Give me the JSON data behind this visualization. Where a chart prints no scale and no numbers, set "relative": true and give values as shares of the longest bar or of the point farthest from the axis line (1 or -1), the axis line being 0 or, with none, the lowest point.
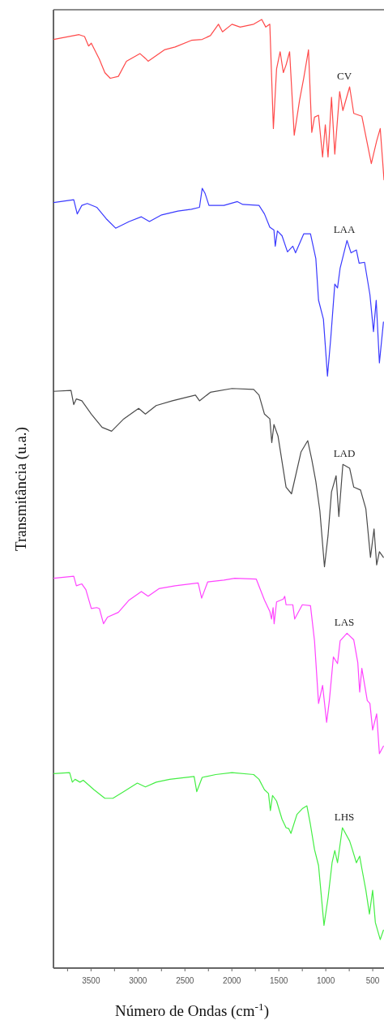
{
  "chart_data": {
    "type": "line",
    "relative": true,
    "xlabel": "Número de Ondas (cm$^{-1}$)",
    "ylabel": "Transmitância (u.a.)",
    "xlim": [
      3900,
      380
    ],
    "xticks": [
      {
        "value": 3750,
        "label": null
      },
      3500,
      {
        "value": 3250,
        "label": null
      },
      3000,
      {
        "value": 2750,
        "label": null
      },
      2500,
      {
        "value": 2250,
        "label": null
      },
      2000,
      {
        "value": 1750,
        "label": null
      },
      1500,
      {
        "value": 1250,
        "label": null
      },
      1000,
      {
        "value": 750,
        "label": null
      },
      500
    ],
    "series": [
      {
        "name": "CV",
        "color": "#ff4a4a",
        "x": [
          3900,
          3627,
          3569,
          3526,
          3497,
          3411,
          3353,
          3295,
          3209,
          3123,
          2978,
          2921,
          2892,
          2719,
          2604,
          2431,
          2316,
          2229,
          2143,
          2100,
          1999,
          1912,
          1768,
          1682,
          1639,
          1596,
          1558,
          1524,
          1486,
          1452,
          1423,
          1385,
          1336,
          1279,
          1235,
          1184,
          1149,
          1120,
          1077,
          1034,
          1005,
          976,
          939,
          904,
          852,
          818,
          746,
          702,
          616,
          515,
          458,
          420,
          380
        ],
        "values": [
          0.979,
          0.984,
          0.982,
          0.972,
          0.975,
          0.958,
          0.944,
          0.938,
          0.94,
          0.956,
          0.964,
          0.959,
          0.956,
          0.968,
          0.971,
          0.978,
          0.979,
          0.983,
          0.995,
          0.987,
          0.995,
          0.992,
          0.995,
          1.0,
          0.992,
          0.995,
          0.885,
          0.948,
          0.966,
          0.944,
          0.952,
          0.966,
          0.878,
          0.915,
          0.938,
          0.968,
          0.881,
          0.897,
          0.899,
          0.855,
          0.889,
          0.855,
          0.918,
          0.858,
          0.924,
          0.904,
          0.929,
          0.901,
          0.898,
          0.848,
          0.872,
          0.885,
          0.831
        ]
      },
      {
        "name": "LAA",
        "color": "#3a3aff",
        "x": [
          3900,
          3684,
          3647,
          3598,
          3540,
          3439,
          3339,
          3238,
          3094,
          2964,
          2878,
          2748,
          2575,
          2431,
          2345,
          2316,
          2287,
          2244,
          2085,
          1941,
          1884,
          1711,
          1653,
          1596,
          1552,
          1538,
          1515,
          1466,
          1408,
          1351,
          1322,
          1235,
          1163,
          1106,
          1077,
          1025,
          982,
          947,
          904,
          875,
          847,
          774,
          731,
          674,
          645,
          587,
          530,
          492,
          463,
          429,
          386
        ],
        "values": [
          0.807,
          0.81,
          0.795,
          0.804,
          0.806,
          0.802,
          0.79,
          0.78,
          0.787,
          0.792,
          0.787,
          0.794,
          0.798,
          0.8,
          0.802,
          0.822,
          0.817,
          0.804,
          0.804,
          0.808,
          0.805,
          0.804,
          0.795,
          0.781,
          0.778,
          0.761,
          0.777,
          0.772,
          0.755,
          0.761,
          0.754,
          0.774,
          0.774,
          0.748,
          0.704,
          0.684,
          0.624,
          0.664,
          0.721,
          0.717,
          0.738,
          0.767,
          0.754,
          0.757,
          0.743,
          0.744,
          0.71,
          0.671,
          0.704,
          0.638,
          0.681
        ]
      },
      {
        "name": "LAD",
        "color": "#4a4a4a",
        "x": [
          3900,
          3713,
          3684,
          3656,
          3598,
          3497,
          3382,
          3281,
          3151,
          2993,
          2921,
          2806,
          2633,
          2388,
          2345,
          2229,
          1999,
          1768,
          1711,
          1653,
          1596,
          1575,
          1552,
          1509,
          1423,
          1365,
          1264,
          1192,
          1149,
          1106,
          1063,
          1014,
          976,
          939,
          890,
          861,
          818,
          746,
          702,
          630,
          573,
          524,
          486,
          458,
          429,
          386
        ],
        "values": [
          0.608,
          0.609,
          0.594,
          0.6,
          0.598,
          0.584,
          0.57,
          0.566,
          0.579,
          0.59,
          0.584,
          0.593,
          0.598,
          0.604,
          0.598,
          0.607,
          0.611,
          0.61,
          0.604,
          0.584,
          0.579,
          0.554,
          0.573,
          0.561,
          0.507,
          0.5,
          0.544,
          0.556,
          0.536,
          0.513,
          0.482,
          0.423,
          0.456,
          0.502,
          0.519,
          0.476,
          0.531,
          0.527,
          0.507,
          0.504,
          0.484,
          0.433,
          0.463,
          0.425,
          0.439,
          0.433
        ]
      },
      {
        "name": "LAS",
        "color": "#ff44ff",
        "x": [
          3900,
          3684,
          3656,
          3598,
          3555,
          3497,
          3439,
          3411,
          3367,
          3324,
          3209,
          3094,
          2964,
          2892,
          2777,
          2604,
          2359,
          2322,
          2258,
          2085,
          1970,
          1740,
          1653,
          1596,
          1578,
          1561,
          1550,
          1524,
          1452,
          1437,
          1423,
          1351,
          1331,
          1250,
          1163,
          1120,
          1077,
          1034,
          991,
          962,
          919,
          875,
          847,
          774,
          702,
          659,
          639,
          616,
          558,
          530,
          501,
          458,
          429,
          386
        ],
        "values": [
          0.411,
          0.413,
          0.403,
          0.405,
          0.399,
          0.379,
          0.38,
          0.379,
          0.363,
          0.37,
          0.375,
          0.388,
          0.397,
          0.392,
          0.4,
          0.403,
          0.406,
          0.39,
          0.407,
          0.409,
          0.411,
          0.41,
          0.388,
          0.376,
          0.368,
          0.38,
          0.363,
          0.386,
          0.389,
          0.392,
          0.383,
          0.383,
          0.368,
          0.383,
          0.382,
          0.345,
          0.279,
          0.298,
          0.259,
          0.282,
          0.328,
          0.321,
          0.345,
          0.353,
          0.346,
          0.322,
          0.291,
          0.316,
          0.282,
          0.279,
          0.251,
          0.268,
          0.226,
          0.234
        ]
      },
      {
        "name": "LHS",
        "color": "#44ee44",
        "x": [
          3900,
          3728,
          3699,
          3670,
          3618,
          3583,
          3468,
          3353,
          3267,
          3151,
          3007,
          2921,
          2806,
          2662,
          2402,
          2374,
          2316,
          2172,
          1999,
          1768,
          1711,
          1653,
          1610,
          1590,
          1567,
          1524,
          1466,
          1423,
          1394,
          1371,
          1307,
          1250,
          1201,
          1163,
          1120,
          1077,
          1019,
          976,
          933,
          904,
          875,
          823,
          746,
          717,
          674,
          639,
          616,
          573,
          535,
          501,
          472,
          420,
          386
        ],
        "values": [
          0.205,
          0.206,
          0.196,
          0.199,
          0.196,
          0.198,
          0.188,
          0.179,
          0.179,
          0.186,
          0.195,
          0.191,
          0.196,
          0.199,
          0.202,
          0.186,
          0.201,
          0.204,
          0.206,
          0.204,
          0.199,
          0.188,
          0.184,
          0.166,
          0.182,
          0.176,
          0.157,
          0.148,
          0.147,
          0.142,
          0.162,
          0.168,
          0.171,
          0.151,
          0.125,
          0.108,
          0.045,
          0.074,
          0.111,
          0.124,
          0.111,
          0.148,
          0.134,
          0.125,
          0.111,
          0.118,
          0.105,
          0.082,
          0.057,
          0.082,
          0.048,
          0.03,
          0.04
        ]
      }
    ]
  }
}
